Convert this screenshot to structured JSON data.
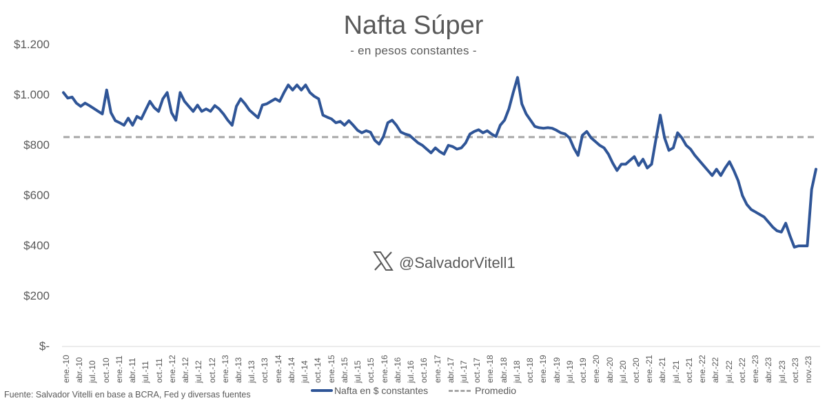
{
  "header": {
    "title": "Nafta Súper",
    "subtitle": "- en pesos constantes -"
  },
  "watermark": {
    "icon": "x-logo-icon",
    "handle": "@SalvadorVitell1"
  },
  "legend": {
    "series_label": "Nafta en $ constantes",
    "average_label": "Promedio"
  },
  "source": "Fuente: Salvador Vitelli en base a BCRA, Fed y diversas fuentes",
  "colors": {
    "series": "#2F5597",
    "average": "#A6A6A6",
    "axis": "#D9D9D9",
    "text": "#595959"
  },
  "chart_data": {
    "type": "line",
    "title": "Nafta Súper",
    "subtitle": "- en pesos constantes -",
    "xlabel": "",
    "ylabel": "",
    "ylim": [
      0,
      1200
    ],
    "y_ticks": [
      "$-",
      "$200",
      "$400",
      "$600",
      "$800",
      "$1.000",
      "$1.200"
    ],
    "y_tick_values": [
      0,
      200,
      400,
      600,
      800,
      1000,
      1200
    ],
    "x_ticks": [
      "ene.-10",
      "abr.-10",
      "jul.-10",
      "oct.-10",
      "ene.-11",
      "abr.-11",
      "jul.-11",
      "oct.-11",
      "ene.-12",
      "abr.-12",
      "jul.-12",
      "oct.-12",
      "ene.-13",
      "abr.-13",
      "jul.-13",
      "oct.-13",
      "ene.-14",
      "abr.-14",
      "jul.-14",
      "oct.-14",
      "ene.-15",
      "abr.-15",
      "jul.-15",
      "oct.-15",
      "ene.-16",
      "abr.-16",
      "jul.-16",
      "oct.-16",
      "ene.-17",
      "abr.-17",
      "jul.-17",
      "oct.-17",
      "ene.-18",
      "abr.-18",
      "jul.-18",
      "oct.-18",
      "ene.-19",
      "abr.-19",
      "jul.-19",
      "oct.-19",
      "ene.-20",
      "abr.-20",
      "jul.-20",
      "oct.-20",
      "ene.-21",
      "abr.-21",
      "jul.-21",
      "oct.-21",
      "ene.-22",
      "abr.-22",
      "jul.-22",
      "oct.-22",
      "ene.-23",
      "abr.-23",
      "jul.-23",
      "oct.-23",
      "nov.-23"
    ],
    "grid": false,
    "legend_position": "bottom",
    "average": 833,
    "series": [
      {
        "name": "Nafta en $ constantes",
        "style": "solid",
        "x_start": "ene.-10",
        "frequency": "approx. monthly trace",
        "values": [
          1010,
          988,
          992,
          968,
          955,
          968,
          958,
          947,
          936,
          925,
          1020,
          930,
          898,
          890,
          880,
          908,
          880,
          915,
          905,
          940,
          975,
          950,
          935,
          985,
          1010,
          930,
          900,
          1010,
          975,
          955,
          935,
          960,
          935,
          945,
          935,
          958,
          945,
          925,
          900,
          880,
          955,
          985,
          965,
          940,
          925,
          910,
          960,
          965,
          975,
          985,
          975,
          1010,
          1040,
          1020,
          1040,
          1020,
          1040,
          1010,
          995,
          985,
          920,
          912,
          905,
          890,
          895,
          880,
          898,
          880,
          860,
          850,
          858,
          852,
          820,
          805,
          835,
          890,
          900,
          880,
          853,
          845,
          840,
          825,
          810,
          800,
          785,
          770,
          790,
          775,
          765,
          800,
          795,
          785,
          790,
          810,
          845,
          855,
          862,
          850,
          858,
          845,
          835,
          880,
          900,
          945,
          1010,
          1070,
          965,
          925,
          900,
          875,
          870,
          868,
          870,
          868,
          860,
          850,
          845,
          830,
          790,
          760,
          840,
          855,
          830,
          815,
          800,
          790,
          765,
          730,
          700,
          725,
          725,
          740,
          755,
          720,
          745,
          710,
          725,
          825,
          920,
          830,
          780,
          790,
          850,
          830,
          800,
          785,
          760,
          740,
          720,
          700,
          680,
          705,
          680,
          710,
          735,
          700,
          660,
          600,
          565,
          545,
          535,
          525,
          515,
          495,
          475,
          460,
          455,
          490,
          440,
          395,
          400,
          400,
          400,
          625,
          705
        ]
      },
      {
        "name": "Promedio",
        "style": "dashed",
        "values_constant": 833
      }
    ]
  }
}
